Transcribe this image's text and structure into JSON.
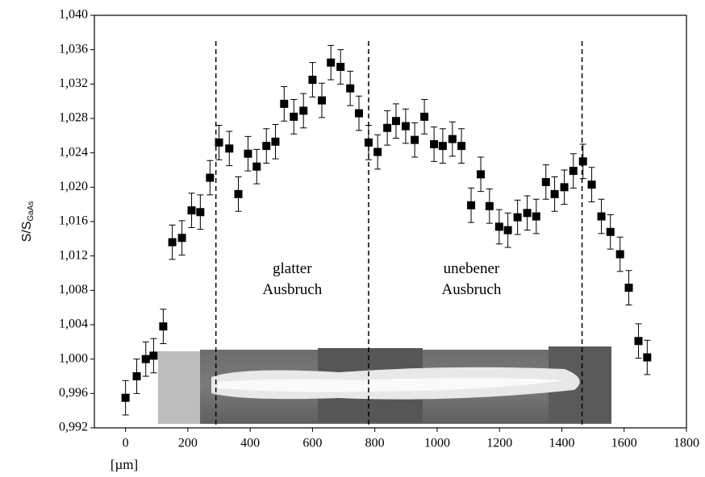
{
  "chart_data": {
    "type": "scatter",
    "x_label": "[µm]",
    "y_label": "S/S",
    "y_label_sub": "GaAs",
    "annotations": [
      {
        "text": "glatter",
        "text2": "Ausbruch",
        "x": 535,
        "y": 1.0092
      },
      {
        "text": "unebener",
        "text2": "Ausbruch",
        "x": 1110,
        "y": 1.0092
      }
    ],
    "reference_lines": [
      290,
      780,
      1465
    ],
    "xlim": [
      -100,
      1800
    ],
    "xticks": [
      0,
      200,
      400,
      600,
      800,
      1000,
      1200,
      1400,
      1600,
      1800
    ],
    "ylim": [
      0.992,
      1.04
    ],
    "yticks": [
      {
        "value": 0.992,
        "label": "0,992"
      },
      {
        "value": 0.996,
        "label": "0,996"
      },
      {
        "value": 1.0,
        "label": "1,000"
      },
      {
        "value": 1.004,
        "label": "1,004"
      },
      {
        "value": 1.008,
        "label": "1,008"
      },
      {
        "value": 1.012,
        "label": "1,012"
      },
      {
        "value": 1.016,
        "label": "1,016"
      },
      {
        "value": 1.02,
        "label": "1,020"
      },
      {
        "value": 1.024,
        "label": "1,024"
      },
      {
        "value": 1.028,
        "label": "1,028"
      },
      {
        "value": 1.032,
        "label": "1,032"
      },
      {
        "value": 1.036,
        "label": "1,036"
      },
      {
        "value": 1.04,
        "label": "1,040"
      }
    ],
    "color": "#000000",
    "x": [
      0,
      36,
      65,
      90,
      121,
      150,
      181,
      212,
      240,
      271,
      300,
      333,
      362,
      393,
      421,
      452,
      481,
      509,
      540,
      571,
      600,
      630,
      659,
      690,
      721,
      749,
      780,
      809,
      840,
      868,
      899,
      928,
      959,
      990,
      1018,
      1049,
      1078,
      1109,
      1140,
      1168,
      1199,
      1227,
      1258,
      1289,
      1318,
      1349,
      1377,
      1408,
      1437,
      1468,
      1496,
      1527,
      1556,
      1587,
      1615,
      1646,
      1674
    ],
    "values": [
      0.9955,
      0.998,
      1.0,
      1.0004,
      1.0038,
      1.0136,
      1.0141,
      1.0173,
      1.0171,
      1.0211,
      1.0252,
      1.0245,
      1.0192,
      1.0239,
      1.0224,
      1.0248,
      1.0253,
      1.0297,
      1.0282,
      1.0289,
      1.0325,
      1.0301,
      1.0345,
      1.034,
      1.0315,
      1.0286,
      1.0252,
      1.0241,
      1.0269,
      1.0277,
      1.0271,
      1.0255,
      1.0282,
      1.025,
      1.0248,
      1.0256,
      1.0248,
      1.0179,
      1.0215,
      1.0178,
      1.0154,
      1.015,
      1.0165,
      1.017,
      1.0166,
      1.0206,
      1.0192,
      1.02,
      1.0219,
      1.023,
      1.0203,
      1.0166,
      1.0148,
      1.0122,
      1.0083,
      1.0021,
      1.0002
    ],
    "errors": [
      0.002,
      0.002,
      0.002,
      0.002,
      0.002,
      0.002,
      0.002,
      0.002,
      0.002,
      0.002,
      0.002,
      0.002,
      0.002,
      0.002,
      0.002,
      0.002,
      0.002,
      0.002,
      0.002,
      0.002,
      0.002,
      0.002,
      0.002,
      0.002,
      0.002,
      0.002,
      0.002,
      0.002,
      0.002,
      0.002,
      0.002,
      0.002,
      0.002,
      0.002,
      0.002,
      0.002,
      0.002,
      0.002,
      0.002,
      0.002,
      0.002,
      0.002,
      0.002,
      0.002,
      0.002,
      0.002,
      0.002,
      0.002,
      0.002,
      0.002,
      0.002,
      0.002,
      0.002,
      0.002,
      0.002,
      0.002,
      0.002
    ]
  }
}
